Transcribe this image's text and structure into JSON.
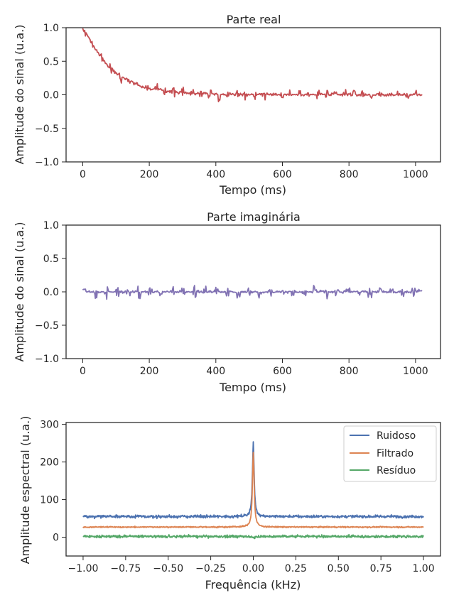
{
  "chart_data": [
    {
      "type": "line",
      "title": "Parte real",
      "xlabel": "Tempo (ms)",
      "ylabel": "Amplitude do sinal (u.a.)",
      "xlim": [
        -50,
        1075
      ],
      "ylim": [
        -1.0,
        1.0
      ],
      "xticks": [
        0,
        200,
        400,
        600,
        800,
        1000
      ],
      "xtick_labels": [
        "0",
        "200",
        "400",
        "600",
        "800",
        "1000"
      ],
      "yticks": [
        -1.0,
        -0.5,
        0.0,
        0.5,
        1.0
      ],
      "ytick_labels": [
        "−1.0",
        "−0.5",
        "0.0",
        "0.5",
        "1.0"
      ],
      "color": "#c44e52",
      "series": [
        {
          "description": "noisy exponentially decaying real part",
          "x": [
            0,
            10,
            20,
            30,
            40,
            50,
            60,
            70,
            80,
            90,
            100,
            120,
            140,
            160,
            180,
            200,
            220,
            240,
            260,
            280,
            300,
            320,
            340,
            360,
            380,
            400,
            420,
            440,
            460,
            480,
            500,
            520,
            540,
            560,
            580,
            600,
            620,
            640,
            660,
            680,
            700,
            720,
            740,
            760,
            780,
            800,
            820,
            840,
            860,
            880,
            900,
            920,
            940,
            960,
            980,
            1000,
            1020
          ],
          "values": [
            1.0,
            0.92,
            0.84,
            0.73,
            0.66,
            0.6,
            0.55,
            0.46,
            0.4,
            0.37,
            0.33,
            0.26,
            0.22,
            0.16,
            0.12,
            0.09,
            0.08,
            0.07,
            0.05,
            0.04,
            0.03,
            0.03,
            0.02,
            0.02,
            0.02,
            0.01,
            0.0,
            0.02,
            0.01,
            0.0,
            0.01,
            0.0,
            0.02,
            0.0,
            0.01,
            0.0,
            0.01,
            0.0,
            0.01,
            0.0,
            0.0,
            0.01,
            0.0,
            0.0,
            0.0,
            0.01,
            0.0,
            0.0,
            0.0,
            0.0,
            0.0,
            0.0,
            0.0,
            0.0,
            0.0,
            0.0,
            0.0
          ]
        }
      ]
    },
    {
      "type": "line",
      "title": "Parte imaginária",
      "xlabel": "Tempo (ms)",
      "ylabel": "Amplitude do sinal (u.a.)",
      "xlim": [
        -50,
        1075
      ],
      "ylim": [
        -1.0,
        1.0
      ],
      "xticks": [
        0,
        200,
        400,
        600,
        800,
        1000
      ],
      "xtick_labels": [
        "0",
        "200",
        "400",
        "600",
        "800",
        "1000"
      ],
      "yticks": [
        -1.0,
        -0.5,
        0.0,
        0.5,
        1.0
      ],
      "ytick_labels": [
        "−1.0",
        "−0.5",
        "0.0",
        "0.5",
        "1.0"
      ],
      "color": "#8172b3",
      "series": [
        {
          "description": "noisy imaginary part centred at zero",
          "x": [
            0,
            100,
            200,
            300,
            400,
            500,
            600,
            700,
            800,
            900,
            1000,
            1020
          ],
          "values": [
            -0.02,
            0.0,
            0.0,
            0.0,
            0.0,
            0.0,
            0.0,
            0.0,
            0.0,
            0.0,
            0.0,
            0.03
          ]
        }
      ]
    },
    {
      "type": "line",
      "xlabel": "Frequência (kHz)",
      "ylabel": "Amplitude espectral (u.a.)",
      "xlim": [
        -1.1,
        1.1
      ],
      "ylim": [
        -50,
        305
      ],
      "xticks": [
        -1.0,
        -0.75,
        -0.5,
        -0.25,
        0.0,
        0.25,
        0.5,
        0.75,
        1.0
      ],
      "xtick_labels": [
        "−1.00",
        "−0.75",
        "−0.50",
        "−0.25",
        "0.00",
        "0.25",
        "0.50",
        "0.75",
        "1.00"
      ],
      "yticks": [
        0,
        100,
        200,
        300
      ],
      "ytick_labels": [
        "0",
        "100",
        "200",
        "300"
      ],
      "legend": "top-right",
      "series": [
        {
          "name": "Ruidoso",
          "color": "#4c72b0",
          "baseline": 55,
          "peak": 250
        },
        {
          "name": "Filtrado",
          "color": "#dd8452",
          "baseline": 27,
          "peak": 225
        },
        {
          "name": "Resíduo",
          "color": "#55a868",
          "baseline": 2,
          "peak": 5
        }
      ]
    }
  ]
}
